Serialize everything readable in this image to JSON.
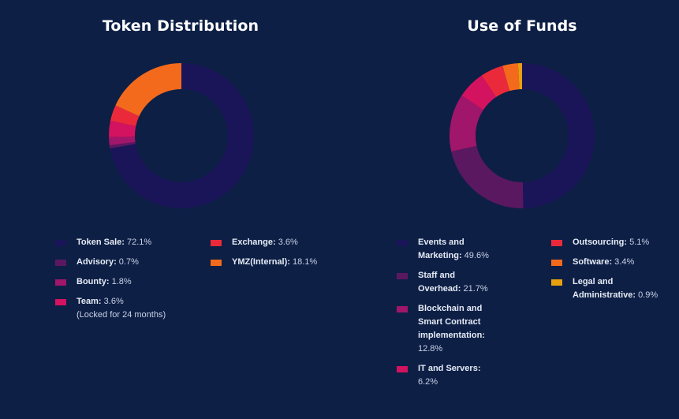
{
  "chart_data": [
    {
      "type": "pie",
      "title": "Token Distribution",
      "categories": [
        "Token Sale",
        "Advisory",
        "Bounty",
        "Team",
        "Exchange",
        "YMZ(Internal)"
      ],
      "values": [
        72.1,
        0.7,
        1.8,
        3.6,
        3.6,
        18.1
      ],
      "value_labels": [
        "72.1%",
        "0.7%",
        "1.8%",
        "3.6%",
        "3.6%",
        "18.1%"
      ],
      "notes": [
        "",
        "",
        "",
        "(Locked for 24 months)",
        "",
        ""
      ],
      "colors": [
        "#1a1558",
        "#5a1860",
        "#a0166a",
        "#d31260",
        "#ea2a3a",
        "#f46a1c"
      ]
    },
    {
      "type": "pie",
      "title": "Use of Funds",
      "categories": [
        "Events and Marketing",
        "Staff and Overhead",
        "Blockchain and Smart Contract implementation",
        "IT and Servers",
        "Outsourcing",
        "Software",
        "Legal and Administrative"
      ],
      "values": [
        49.6,
        21.7,
        12.8,
        6.2,
        5.1,
        3.4,
        0.9
      ],
      "value_labels": [
        "49.6%",
        "21.7%",
        "12.8%",
        "6.2%",
        "5.1%",
        "3.4%",
        "0.9%"
      ],
      "notes": [
        "",
        "",
        "",
        "",
        "",
        "",
        ""
      ],
      "colors": [
        "#1a1558",
        "#5a1860",
        "#a0166a",
        "#d31260",
        "#ea2a3a",
        "#f46a1c",
        "#e8a010"
      ]
    }
  ]
}
